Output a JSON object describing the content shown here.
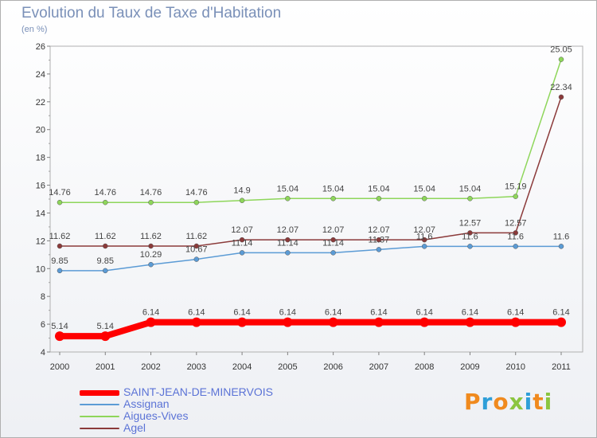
{
  "header": {
    "title": "Evolution du Taux de Taxe d'Habitation",
    "subtitle": "(en %)"
  },
  "brand": {
    "letters": [
      "P",
      "r",
      "o",
      "x",
      "i",
      "t",
      "i"
    ],
    "colors": [
      "#f08a1e",
      "#2f9fd8",
      "#f08a1e",
      "#8bc53f",
      "#2f9fd8",
      "#f08a1e",
      "#8bc53f"
    ]
  },
  "chart_data": {
    "type": "line",
    "title": "Evolution du Taux de Taxe d'Habitation",
    "ylabel": "(en %)",
    "ylim": [
      4,
      26
    ],
    "yticks": [
      4,
      6,
      8,
      10,
      12,
      14,
      16,
      18,
      20,
      22,
      24,
      26
    ],
    "grid": false,
    "legend_position": "bottom-left",
    "x": [
      "2000",
      "2001",
      "2002",
      "2003",
      "2004",
      "2005",
      "2006",
      "2007",
      "2008",
      "2009",
      "2010",
      "2011"
    ],
    "series": [
      {
        "name": "SAINT-JEAN-DE-MINERVOIS",
        "color": "#ff0000",
        "values": [
          5.14,
          5.14,
          6.14,
          6.14,
          6.14,
          6.14,
          6.14,
          6.14,
          6.14,
          6.14,
          6.14,
          6.14
        ],
        "labels": [
          "5.14",
          "5.14",
          "6.14",
          "6.14",
          "6.14",
          "6.14",
          "6.14",
          "6.14",
          "6.14",
          "6.14",
          "6.14",
          "6.14"
        ]
      },
      {
        "name": "Assignan",
        "color": "#5b9bd5",
        "values": [
          9.85,
          9.85,
          10.29,
          10.67,
          11.14,
          11.14,
          11.14,
          11.37,
          11.6,
          11.6,
          11.6,
          11.6
        ],
        "labels": [
          "9.85",
          "9.85",
          "10.29",
          "10.67",
          "11.14",
          "11.14",
          "11.14",
          "11.37",
          "11.6",
          "11.6",
          "11.6",
          "11.6"
        ]
      },
      {
        "name": "Aigues-Vives",
        "color": "#8ed65a",
        "values": [
          14.76,
          14.76,
          14.76,
          14.76,
          14.9,
          15.04,
          15.04,
          15.04,
          15.04,
          15.04,
          15.19,
          25.05
        ],
        "labels": [
          "14.76",
          "14.76",
          "14.76",
          "14.76",
          "14.9",
          "15.04",
          "15.04",
          "15.04",
          "15.04",
          "15.04",
          "15.19",
          "25.05"
        ]
      },
      {
        "name": "Agel",
        "color": "#8b3a3a",
        "values": [
          11.62,
          11.62,
          11.62,
          11.62,
          12.07,
          12.07,
          12.07,
          12.07,
          12.07,
          12.57,
          12.57,
          22.34
        ],
        "labels": [
          "11.62",
          "11.62",
          "11.62",
          "11.62",
          "12.07",
          "12.07",
          "12.07",
          "12.07",
          "12.07",
          "12.57",
          "12.57",
          "22.34"
        ]
      }
    ]
  }
}
